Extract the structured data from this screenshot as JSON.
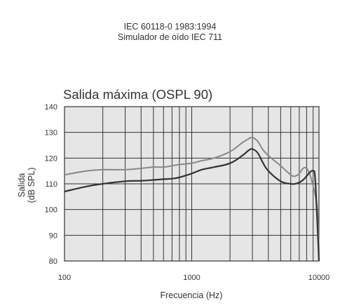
{
  "header": {
    "standard_line1": "IEC 60118-0 1983:1994",
    "standard_line2": "Simulador de oído IEC 711"
  },
  "chart_data": {
    "type": "line",
    "title": "Salida máxima (OSPL 90)",
    "xlabel": "Frecuencia (Hz)",
    "ylabel_line1": "Salida",
    "ylabel_line2": "(dB SPL)",
    "x_scale": "log",
    "xlim": [
      100,
      10000
    ],
    "ylim": [
      80,
      140
    ],
    "x_ticks": [
      100,
      1000,
      10000
    ],
    "x_tick_labels": [
      "100",
      "1000",
      "10000"
    ],
    "y_ticks": [
      80,
      90,
      100,
      110,
      120,
      130,
      140
    ],
    "y_tick_labels": [
      "80",
      "90",
      "100",
      "110",
      "120",
      "130",
      "140"
    ],
    "grid": true,
    "background": "#e6e6e6",
    "series": [
      {
        "color": "#888888",
        "x": [
          100,
          150,
          200,
          300,
          400,
          500,
          600,
          700,
          800,
          1000,
          1200,
          1500,
          2000,
          2500,
          2800,
          3000,
          3300,
          3600,
          4000,
          5000,
          6000,
          6500,
          7000,
          7500,
          8000,
          8500,
          9000,
          9500,
          9800,
          10000
        ],
        "y": [
          113.5,
          115,
          115.5,
          115.5,
          116,
          116.5,
          116.5,
          117,
          117.5,
          118,
          119,
          120,
          122.5,
          126,
          127.5,
          128,
          126.5,
          123.5,
          121,
          117,
          113.5,
          113,
          114,
          116,
          116,
          113.5,
          109,
          104,
          97,
          82
        ]
      },
      {
        "color": "#333333",
        "x": [
          100,
          150,
          200,
          300,
          400,
          500,
          600,
          700,
          800,
          1000,
          1200,
          1500,
          2000,
          2500,
          2800,
          3000,
          3300,
          3600,
          4000,
          5000,
          6000,
          6500,
          7000,
          7500,
          8000,
          8500,
          9000,
          9300,
          9600,
          10000
        ],
        "y": [
          107,
          109,
          110,
          111,
          111.2,
          111.5,
          111.8,
          112,
          112.5,
          114,
          115.5,
          116.5,
          118,
          121,
          123,
          123.5,
          122,
          118.5,
          115,
          111,
          110,
          110,
          110.5,
          111.5,
          113,
          114.5,
          115,
          113,
          100,
          80
        ]
      }
    ]
  }
}
